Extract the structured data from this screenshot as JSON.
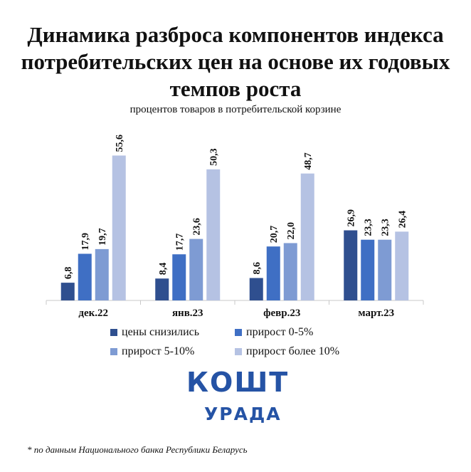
{
  "chart_data": {
    "type": "bar",
    "title": "Динамика разброса компонентов индекса потребительских цен на основе их годовых темпов роста",
    "subtitle": "процентов товаров в потребительской корзине",
    "categories": [
      "дек.22",
      "янв.23",
      "февр.23",
      "март.23"
    ],
    "series": [
      {
        "name": "цены снизились",
        "color": "#2f4f8f",
        "values": [
          6.8,
          8.4,
          8.6,
          26.9
        ],
        "labels": [
          "6,8",
          "8,4",
          "8,6",
          "26,9"
        ]
      },
      {
        "name": "прирост 0-5%",
        "color": "#3f6fc4",
        "values": [
          17.9,
          17.7,
          20.7,
          23.3
        ],
        "labels": [
          "17,9",
          "17,7",
          "20,7",
          "23,3"
        ]
      },
      {
        "name": "прирост 5-10%",
        "color": "#7e9bd3",
        "values": [
          19.7,
          23.6,
          22.0,
          23.3
        ],
        "labels": [
          "19,7",
          "23,6",
          "22,0",
          "23,3"
        ]
      },
      {
        "name": "прирост более 10%",
        "color": "#b5c2e3",
        "values": [
          55.6,
          50.3,
          48.7,
          26.4
        ],
        "labels": [
          "55,6",
          "50,3",
          "48,7",
          "26,4"
        ]
      }
    ],
    "ylim": [
      0,
      56
    ],
    "grid": false,
    "legend_position": "bottom"
  },
  "logo": {
    "top": "КОШТ",
    "bottom": "УРАДА"
  },
  "footnote": "* по данным Национального банка Республики Беларусь"
}
